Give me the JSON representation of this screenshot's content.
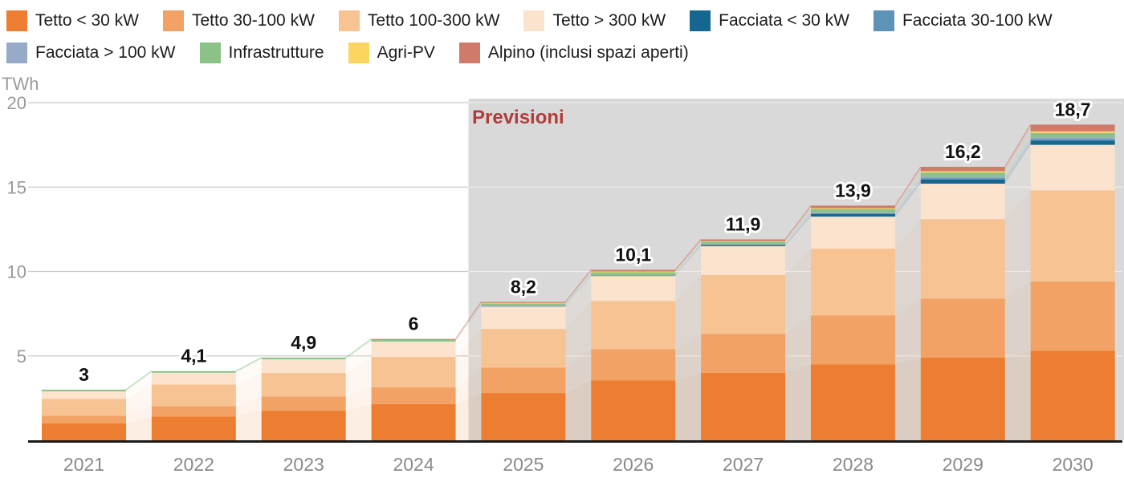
{
  "chart_data": {
    "type": "bar",
    "stacked": true,
    "title": "",
    "ylabel": "TWh",
    "xlabel": "",
    "ylim": [
      0,
      20
    ],
    "y_ticks": [
      5,
      10,
      15,
      20
    ],
    "grid": true,
    "legend_position": "top",
    "categories": [
      "2021",
      "2022",
      "2023",
      "2024",
      "2025",
      "2026",
      "2027",
      "2028",
      "2029",
      "2030"
    ],
    "series": [
      {
        "name": "Tetto < 30 kW",
        "color": "#ED7D31",
        "values": [
          1.0,
          1.4,
          1.75,
          2.15,
          2.8,
          3.55,
          4.0,
          4.5,
          4.9,
          5.3
        ]
      },
      {
        "name": "Tetto 30-100 kW",
        "color": "#F2A264",
        "values": [
          0.45,
          0.62,
          0.85,
          1.0,
          1.5,
          1.85,
          2.3,
          2.9,
          3.5,
          4.1
        ]
      },
      {
        "name": "Tetto 100-300 kW",
        "color": "#F8C393",
        "values": [
          1.0,
          1.28,
          1.4,
          1.8,
          2.3,
          2.85,
          3.5,
          3.95,
          4.7,
          5.4
        ]
      },
      {
        "name": "Tetto > 300 kW",
        "color": "#FBE3CD",
        "values": [
          0.45,
          0.7,
          0.8,
          0.9,
          1.35,
          1.5,
          1.7,
          1.9,
          2.1,
          2.7
        ]
      },
      {
        "name": "Facciata < 30 kW",
        "color": "#15678F",
        "values": [
          0,
          0,
          0,
          0,
          0.02,
          0.03,
          0.08,
          0.15,
          0.25,
          0.25
        ]
      },
      {
        "name": "Facciata 30-100 kW",
        "color": "#5E93B8",
        "values": [
          0,
          0,
          0,
          0,
          0.01,
          0.01,
          0.02,
          0.05,
          0.08,
          0.1
        ]
      },
      {
        "name": "Facciata > 100 kW",
        "color": "#97ABC8",
        "values": [
          0,
          0,
          0,
          0,
          0.01,
          0.01,
          0.02,
          0.05,
          0.08,
          0.1
        ]
      },
      {
        "name": "Infrastrutture",
        "color": "#8CC287",
        "values": [
          0.1,
          0.1,
          0.1,
          0.12,
          0.12,
          0.15,
          0.15,
          0.2,
          0.25,
          0.25
        ]
      },
      {
        "name": "Agri-PV",
        "color": "#FBD55F",
        "values": [
          0,
          0,
          0,
          0,
          0.03,
          0.05,
          0.03,
          0.05,
          0.08,
          0.1
        ]
      },
      {
        "name": "Alpino (inclusi spazi aperti)",
        "color": "#D07A6C",
        "values": [
          0,
          0,
          0,
          0.03,
          0.06,
          0.1,
          0.1,
          0.15,
          0.26,
          0.4
        ]
      }
    ],
    "totals": [
      3,
      4.1,
      4.9,
      6,
      8.2,
      10.1,
      11.9,
      13.9,
      16.2,
      18.7
    ],
    "totals_labels": [
      "3",
      "4,1",
      "4,9",
      "6",
      "8,2",
      "10,1",
      "11,9",
      "13,9",
      "16,2",
      "18,7"
    ],
    "forecast": {
      "label": "Previsioni",
      "from_category": "2025",
      "label_color": "#B23B3B",
      "bg_color": "#D9D9D9"
    }
  },
  "colors": {
    "axis_unit_text": "#9B9B9B",
    "y_tick_text": "#999999",
    "x_tick_text": "#8A8A8A",
    "grid_line": "#CBCBCB",
    "baseline": "#1A1A1A",
    "value_label": "#111111"
  }
}
